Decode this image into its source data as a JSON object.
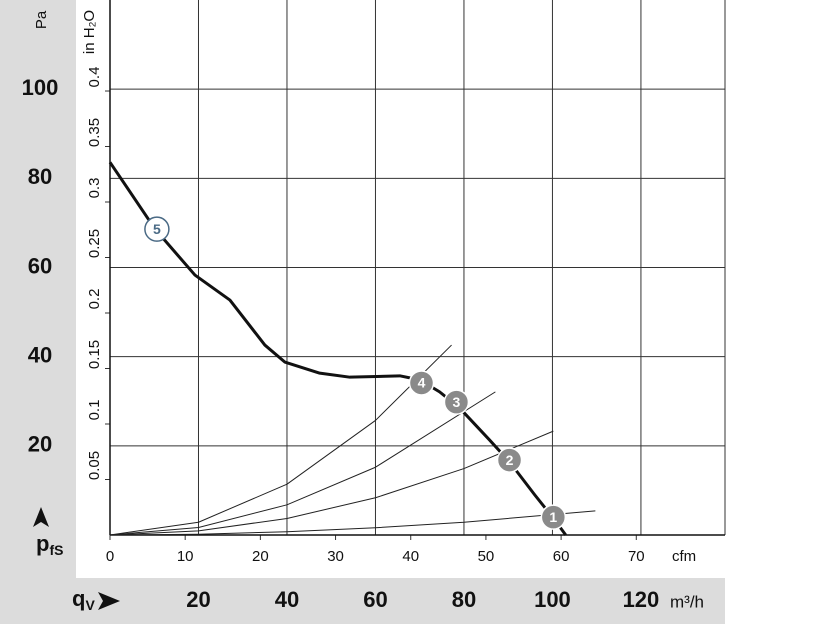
{
  "chart_data": {
    "type": "line",
    "xlim": [
      0,
      139
    ],
    "ylim": [
      0,
      120
    ],
    "xticks": [
      20,
      40,
      60,
      80,
      100,
      120
    ],
    "yticks": [
      20,
      40,
      60,
      80,
      100
    ],
    "x2lim": [
      0,
      81.8
    ],
    "x2ticks": [
      0,
      10,
      20,
      30,
      40,
      50,
      60,
      70
    ],
    "y2lim": [
      0,
      0.482
    ],
    "y2ticks": [
      0.05,
      0.1,
      0.15,
      0.2,
      0.25,
      0.3,
      0.35,
      0.4
    ],
    "ylabel": "Pa",
    "y2label": "in H₂O",
    "x2label": "cfm",
    "xlabel": "m³/h",
    "ysymbol": "p",
    "ysymbol_sub": "fS",
    "xsymbol": "q",
    "xsymbol_sub": "V",
    "grid": true,
    "series": [
      {
        "color": "#111111",
        "line_width": 3,
        "x": [
          0,
          10.2,
          19.2,
          27.1,
          35,
          39.5,
          47.4,
          54.2,
          65.5,
          70,
          74.5,
          79,
          85.8,
          90.3,
          96,
          100.5,
          103
        ],
        "values": [
          83.6,
          68.6,
          58.3,
          52.7,
          42.6,
          38.8,
          36.3,
          35.4,
          35.7,
          34.8,
          32.1,
          28.5,
          21.3,
          16.4,
          9,
          3.4,
          0
        ]
      },
      {
        "color": "#222222",
        "line_width": 1,
        "x": [
          0,
          20,
          40,
          60,
          77.2
        ],
        "values": [
          0,
          2.86,
          11.4,
          25.7,
          42.6
        ]
      },
      {
        "color": "#222222",
        "line_width": 1,
        "x": [
          0,
          20,
          40,
          60,
          87.1
        ],
        "values": [
          0,
          1.69,
          6.77,
          15.2,
          32.1
        ]
      },
      {
        "color": "#222222",
        "line_width": 1,
        "x": [
          0,
          20,
          40,
          60,
          80,
          100.2
        ],
        "values": [
          0,
          0.93,
          3.71,
          8.35,
          14.9,
          23.3
        ]
      },
      {
        "color": "#222222",
        "line_width": 1,
        "x": [
          0,
          20,
          40,
          60,
          80,
          109.7
        ],
        "values": [
          0,
          0.18,
          0.72,
          1.62,
          2.87,
          5.4
        ]
      }
    ],
    "markers": [
      {
        "label": "1",
        "x": 100.2,
        "y": 4.0,
        "fill": "#8a8a8a",
        "stroke": "#ffffff",
        "text_color": "#ffffff"
      },
      {
        "label": "2",
        "x": 90.3,
        "y": 16.8,
        "fill": "#8a8a8a",
        "stroke": "#ffffff",
        "text_color": "#ffffff"
      },
      {
        "label": "3",
        "x": 78.3,
        "y": 29.8,
        "fill": "#8a8a8a",
        "stroke": "#ffffff",
        "text_color": "#ffffff"
      },
      {
        "label": "4",
        "x": 70.4,
        "y": 34.1,
        "fill": "#8a8a8a",
        "stroke": "#ffffff",
        "text_color": "#ffffff"
      },
      {
        "label": "5",
        "x": 10.6,
        "y": 68.6,
        "fill": "#ffffff",
        "stroke": "#4a6a85",
        "text_color": "#4a6a85"
      }
    ]
  }
}
